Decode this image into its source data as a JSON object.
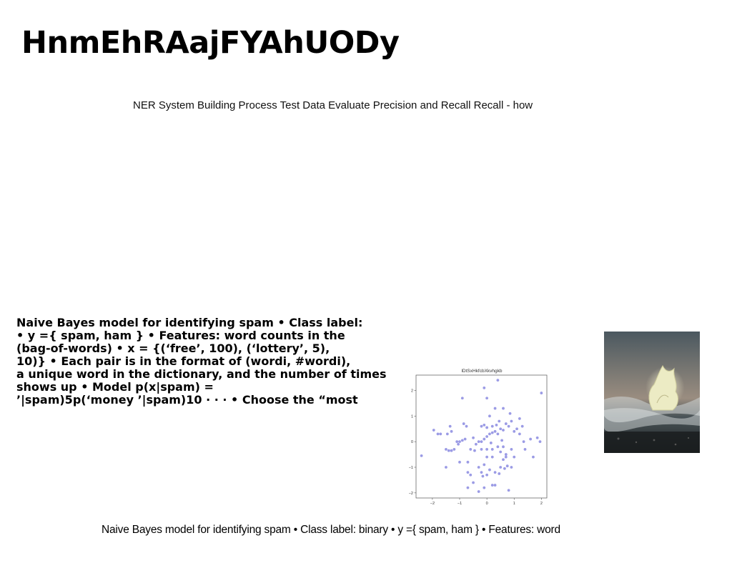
{
  "page": {
    "title": "HnmEhRAajFYAhUODy",
    "subtitle": "NER System Building Process Test Data Evaluate Precision and Recall Recall - how",
    "body_lines": [
      "Naive Bayes model for identifying spam • Class label:",
      "• y ={ spam, ham } • Features: word counts in the",
      "(bag-of-words) • x = {(‘free’, 100), (‘lottery’, 5),",
      "10)} • Each pair is in the format of (wordi, #wordi),",
      "a unique word in the dictionary, and the number of times",
      "shows up • Model p(x|spam) =",
      "’|spam)5p(‘money ’|spam)10 · · · • Choose the “most"
    ],
    "caption": "Naive Bayes model for identifying spam • Class label: binary • y ={ spam, ham } • Features: word"
  },
  "chart_data": {
    "type": "scatter",
    "title": "lDtSxHkfcbXkvhgkb",
    "xlabel": "",
    "ylabel": "",
    "xlim": [
      -2.6,
      2.2
    ],
    "ylim": [
      -2.2,
      2.6
    ],
    "xticks": [
      "−2",
      "−1",
      "0",
      "1",
      "2"
    ],
    "yticks": [
      "2",
      "1",
      "0",
      "−1",
      "−2"
    ],
    "xtick_values": [
      -2,
      -1,
      0,
      1,
      2
    ],
    "ytick_values": [
      2,
      1,
      0,
      -1,
      -2
    ],
    "point_color": "#8a8ae0",
    "points": [
      [
        0.4,
        2.4
      ],
      [
        -0.1,
        2.1
      ],
      [
        0.0,
        1.7
      ],
      [
        -0.9,
        1.7
      ],
      [
        2.0,
        1.9
      ],
      [
        -2.4,
        -0.55
      ],
      [
        -1.95,
        0.45
      ],
      [
        -1.8,
        0.3
      ],
      [
        -1.7,
        0.3
      ],
      [
        -1.45,
        0.3
      ],
      [
        -1.35,
        0.6
      ],
      [
        -1.3,
        0.4
      ],
      [
        -1.1,
        0.0
      ],
      [
        -1.05,
        -0.1
      ],
      [
        -1.0,
        0.0
      ],
      [
        -0.9,
        0.05
      ],
      [
        -0.85,
        0.7
      ],
      [
        -0.75,
        0.6
      ],
      [
        -1.5,
        -0.3
      ],
      [
        -1.4,
        -0.35
      ],
      [
        -1.3,
        -0.35
      ],
      [
        -1.5,
        -1.0
      ],
      [
        -1.2,
        -0.3
      ],
      [
        -1.0,
        -0.8
      ],
      [
        -0.7,
        -0.8
      ],
      [
        -0.7,
        -1.2
      ],
      [
        -0.6,
        -1.3
      ],
      [
        -0.5,
        -1.6
      ],
      [
        -0.7,
        -1.8
      ],
      [
        -0.3,
        -1.95
      ],
      [
        -0.1,
        -1.8
      ],
      [
        0.0,
        -1.3
      ],
      [
        0.1,
        -1.1
      ],
      [
        0.2,
        -1.7
      ],
      [
        0.3,
        -1.7
      ],
      [
        -0.2,
        -1.2
      ],
      [
        -0.3,
        -1.0
      ],
      [
        -0.1,
        -0.9
      ],
      [
        0.0,
        -0.6
      ],
      [
        0.2,
        -0.6
      ],
      [
        0.3,
        -1.2
      ],
      [
        0.5,
        -1.0
      ],
      [
        0.6,
        -0.7
      ],
      [
        0.7,
        -0.6
      ],
      [
        0.75,
        -0.95
      ],
      [
        0.8,
        -1.9
      ],
      [
        0.9,
        -1.0
      ],
      [
        0.7,
        -0.5
      ],
      [
        0.5,
        -0.4
      ],
      [
        0.4,
        -0.2
      ],
      [
        0.2,
        -0.3
      ],
      [
        0.0,
        -0.3
      ],
      [
        -0.2,
        -0.3
      ],
      [
        -0.4,
        -0.1
      ],
      [
        -0.3,
        0.0
      ],
      [
        -0.2,
        0.0
      ],
      [
        -0.1,
        0.1
      ],
      [
        0.0,
        0.2
      ],
      [
        0.1,
        0.3
      ],
      [
        0.2,
        0.35
      ],
      [
        0.3,
        0.4
      ],
      [
        0.4,
        0.3
      ],
      [
        0.5,
        0.5
      ],
      [
        0.6,
        0.45
      ],
      [
        0.7,
        0.7
      ],
      [
        0.8,
        0.6
      ],
      [
        0.9,
        0.8
      ],
      [
        1.0,
        0.4
      ],
      [
        1.1,
        0.5
      ],
      [
        1.2,
        0.9
      ],
      [
        1.3,
        0.6
      ],
      [
        1.35,
        0.0
      ],
      [
        1.4,
        -0.3
      ],
      [
        1.6,
        0.1
      ],
      [
        1.7,
        -0.6
      ],
      [
        1.85,
        0.15
      ],
      [
        1.95,
        0.0
      ],
      [
        0.85,
        1.1
      ],
      [
        0.6,
        1.3
      ],
      [
        0.3,
        1.3
      ],
      [
        0.1,
        1.0
      ],
      [
        -0.2,
        0.6
      ],
      [
        -0.1,
        0.65
      ],
      [
        0.0,
        0.55
      ],
      [
        0.2,
        0.6
      ],
      [
        0.35,
        0.65
      ],
      [
        0.45,
        0.8
      ],
      [
        -0.5,
        0.15
      ],
      [
        -0.6,
        -0.3
      ],
      [
        -0.8,
        0.1
      ],
      [
        0.6,
        -0.2
      ],
      [
        0.9,
        -0.3
      ],
      [
        1.0,
        -0.6
      ],
      [
        0.65,
        -1.05
      ],
      [
        -0.15,
        -1.35
      ],
      [
        0.45,
        -1.25
      ],
      [
        1.2,
        0.3
      ],
      [
        -0.45,
        -0.35
      ],
      [
        0.15,
        -0.05
      ],
      [
        0.55,
        0.05
      ]
    ]
  },
  "image": {
    "icon": "wave-rock-photo"
  }
}
